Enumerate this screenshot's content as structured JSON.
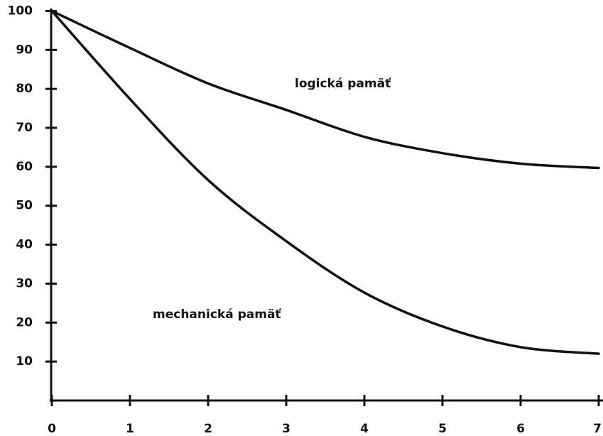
{
  "chart_data": {
    "type": "line",
    "x": [
      0,
      1,
      2,
      3,
      4,
      5,
      6,
      7
    ],
    "series": [
      {
        "name": "logická pamäť",
        "color": "#111111",
        "values": [
          100,
          90.5,
          81.4,
          74.6,
          67.7,
          63.5,
          60.8,
          59.7
        ]
      },
      {
        "name": "mechanická pamäť",
        "color": "#111111",
        "values": [
          100,
          77.4,
          56.6,
          40.9,
          27.7,
          19,
          13.7,
          12
        ]
      }
    ],
    "xlim": [
      0,
      7
    ],
    "xticks": [
      0,
      1,
      2,
      3,
      4,
      5,
      6,
      7
    ],
    "ylim": [
      0,
      100
    ],
    "yticks": [
      10,
      20,
      30,
      40,
      50,
      60,
      70,
      80,
      90,
      100
    ],
    "grid": false
  }
}
